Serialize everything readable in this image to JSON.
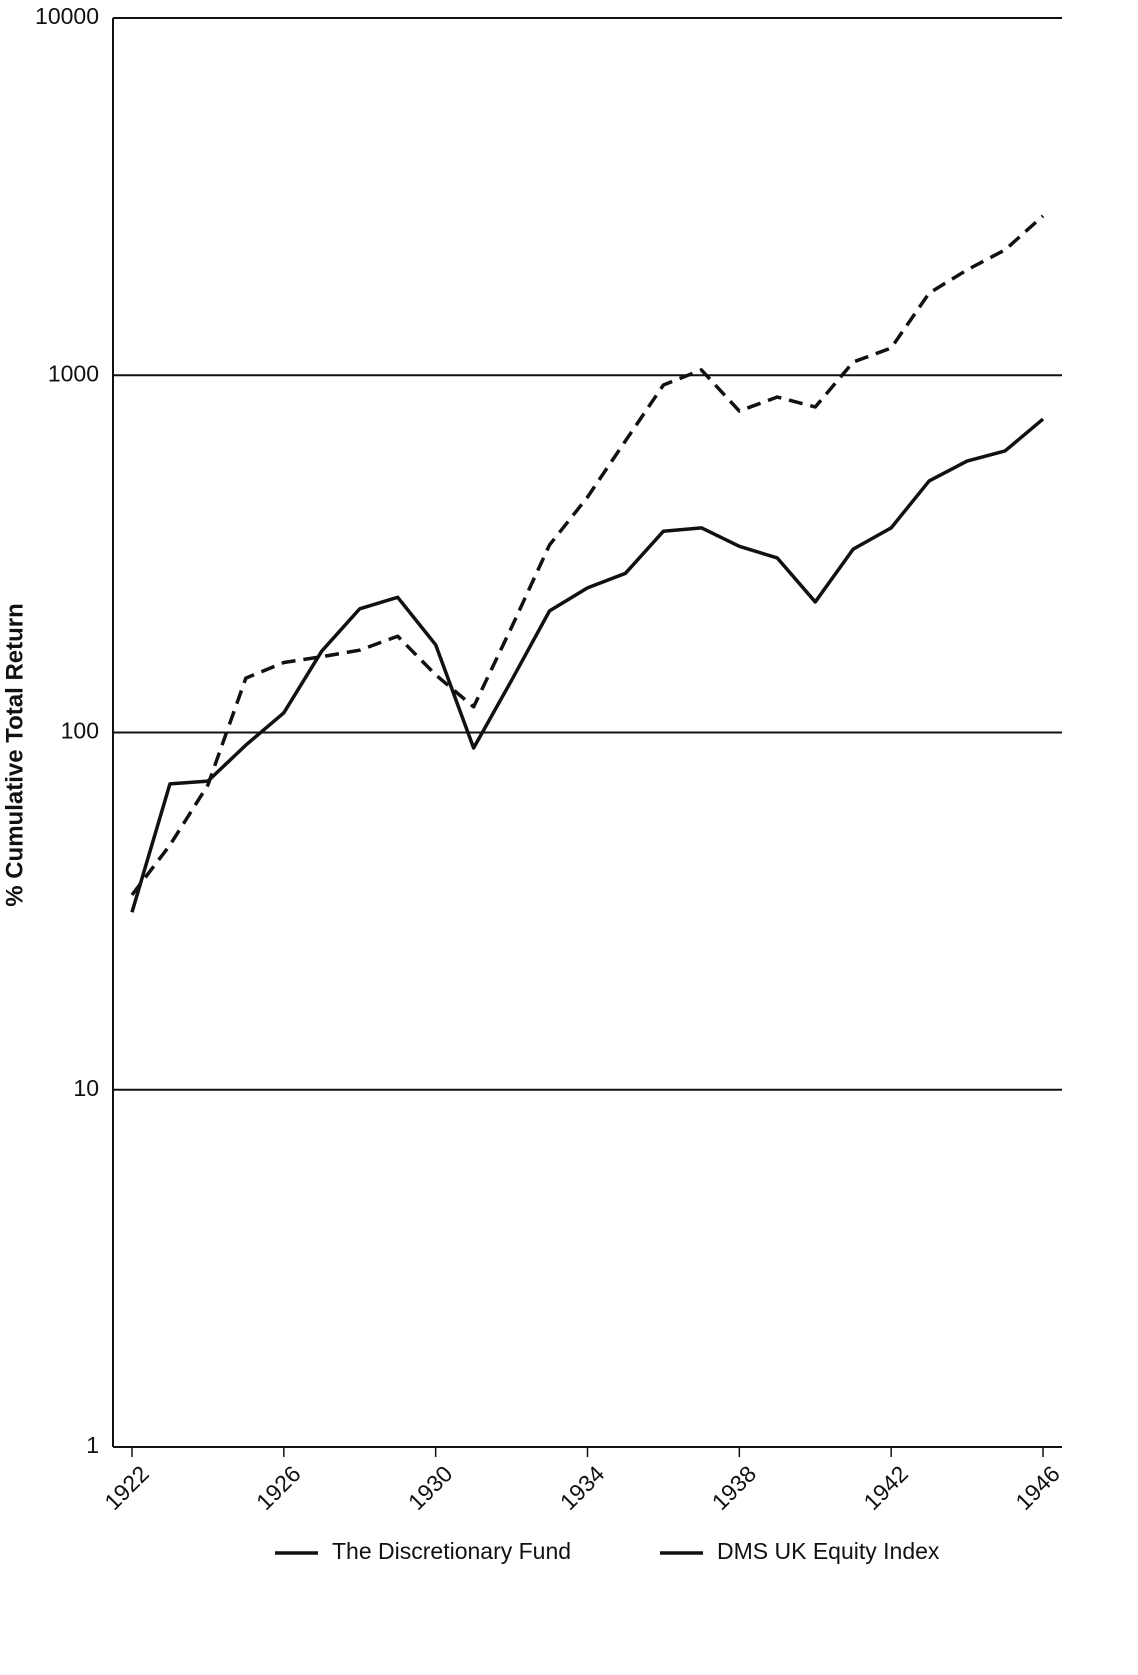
{
  "chart_data": {
    "type": "line",
    "y_label": "% Cumulative Total Return",
    "log_y": true,
    "grid": true,
    "x": [
      1922,
      1923,
      1924,
      1925,
      1926,
      1927,
      1928,
      1929,
      1930,
      1931,
      1932,
      1933,
      1934,
      1935,
      1936,
      1937,
      1938,
      1939,
      1940,
      1941,
      1942,
      1943,
      1944,
      1945,
      1946
    ],
    "series": [
      {
        "name": "The Discretionary Fund",
        "color": "#111111",
        "dash": true,
        "values": [
          35.1,
          48.4,
          71.3,
          142,
          157,
          163,
          170,
          186,
          145,
          118,
          197,
          335,
          456,
          655,
          939,
          1035,
          794,
          869,
          815,
          1089,
          1192,
          1698,
          1972,
          2244,
          2793
        ]
      },
      {
        "name": "DMS UK Equity Index",
        "color": "#111111",
        "dash": false,
        "values": [
          31.4,
          71.8,
          73.1,
          92.2,
          113.5,
          169,
          222,
          239,
          176,
          90.5,
          140,
          219,
          254,
          279,
          366,
          374,
          332,
          308,
          232,
          326,
          374,
          506,
          575,
          614,
          754
        ]
      }
    ],
    "xlim": [
      1921.5,
      1946.5
    ],
    "xticks": [
      1922,
      1926,
      1930,
      1934,
      1938,
      1942,
      1946
    ],
    "ylim": [
      1,
      10000
    ],
    "yticks": [
      1,
      10,
      100,
      1000,
      10000
    ]
  }
}
